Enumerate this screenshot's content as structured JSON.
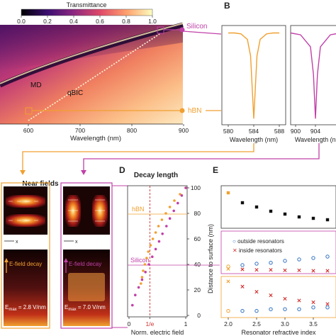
{
  "colors": {
    "orange": "#f0a030",
    "magenta": "#c040a8",
    "red": "#d03030",
    "blue": "#3070c0"
  },
  "panels": {
    "a": {
      "colorbar_title": "Transmittance",
      "colorbar_ticks": [
        "0.0",
        "0.2",
        "0.4",
        "0.6",
        "0.8",
        "1.0"
      ],
      "label_md": "MD",
      "label_qbic": "qBIC",
      "tag_silicon": "Silicon",
      "tag_hbn": "hBN",
      "xlabel": "Wavelength (nm)",
      "xticks": [
        "600",
        "700",
        "800",
        "900"
      ]
    },
    "b": {
      "letter": "B",
      "left": {
        "xticks": [
          "580",
          "584",
          "588"
        ],
        "xlabel": "Wavelength (nm)"
      },
      "right": {
        "xticks": [
          "900",
          "904"
        ],
        "xlabel": "Wavelength (nm)"
      }
    },
    "c": {
      "title": "Near fields",
      "axis_x": "x",
      "efield_left": "E-field decay",
      "efield_right": "E-field decay",
      "emax_left_prefix": "E",
      "emax_left_sub": "max",
      "emax_left_value": " = 2.8 V/nm",
      "emax_right_prefix": "E",
      "emax_right_sub": "max",
      "emax_right_value": " = 7.0 V/nm"
    },
    "d": {
      "letter": "D",
      "title": "Decay length",
      "label_hbn": "hBN",
      "label_silicon": "Silicon",
      "xlabel": "Norm. electric field",
      "xticks": [
        "0",
        "1/e",
        "1"
      ]
    },
    "e": {
      "letter": "E",
      "ylabel": "Distance to surface (nm)",
      "yticks": [
        "0",
        "20",
        "40",
        "60",
        "80",
        "100"
      ],
      "legend_outside": "outside resonators",
      "legend_inside": "inside resonators",
      "xlabel": "Resonator refractive index",
      "xticks": [
        "2.0",
        "2.5",
        "3.0",
        "3.5"
      ]
    }
  },
  "chart_data": [
    {
      "type": "line",
      "panel": "B-left",
      "x": [
        580,
        581,
        582,
        583,
        583.5,
        584,
        584.5,
        585,
        586,
        587,
        588
      ],
      "y": [
        0.95,
        0.95,
        0.94,
        0.88,
        0.7,
        0.02,
        0.7,
        0.88,
        0.94,
        0.95,
        0.95
      ],
      "xlabel": "Wavelength (nm)",
      "xlim": [
        579,
        589
      ]
    },
    {
      "type": "line",
      "panel": "B-right",
      "x": [
        899,
        901,
        903,
        903.6,
        904,
        904.4,
        905,
        907,
        909
      ],
      "y": [
        0.95,
        0.93,
        0.8,
        0.5,
        0.02,
        0.5,
        0.8,
        0.93,
        0.95
      ],
      "xlabel": "Wavelength (nm)",
      "xlim": [
        899,
        909
      ]
    },
    {
      "type": "scatter",
      "panel": "D",
      "xlabel": "Norm. electric field",
      "ylabel": "Distance to surface (nm)",
      "xlim": [
        0,
        1
      ],
      "ylim": [
        0,
        100
      ],
      "series": [
        {
          "name": "hBN",
          "x": [
            1.0,
            0.9,
            0.8,
            0.72,
            0.65,
            0.58,
            0.52,
            0.47,
            0.42,
            0.38,
            0.34,
            0.31,
            0.28,
            0.25,
            0.23,
            0.21
          ],
          "y": [
            100,
            95,
            90,
            85,
            80,
            75,
            70,
            65,
            60,
            55,
            50,
            45,
            40,
            35,
            30,
            25
          ]
        },
        {
          "name": "Silicon",
          "x": [
            1.0,
            0.93,
            0.86,
            0.79,
            0.72,
            0.66,
            0.59,
            0.53,
            0.47,
            0.41,
            0.35,
            0.29,
            0.23,
            0.17,
            0.11,
            0.06
          ],
          "y": [
            100,
            94,
            88,
            82,
            76,
            70,
            64,
            58,
            52,
            46,
            40,
            34,
            28,
            22,
            16,
            8
          ]
        }
      ]
    },
    {
      "type": "scatter",
      "panel": "E-top",
      "x": [
        2.0,
        2.25,
        2.5,
        2.75,
        3.0,
        3.25,
        3.5,
        3.75
      ],
      "y": [
        95,
        88,
        85,
        82,
        80,
        78,
        77,
        76
      ]
    },
    {
      "type": "scatter",
      "panel": "E-middle",
      "xlabel": "Resonator refractive index",
      "series": [
        {
          "name": "outside resonators",
          "x": [
            2.0,
            2.25,
            2.5,
            2.75,
            3.0,
            3.25,
            3.5,
            3.75
          ],
          "y": [
            40,
            43,
            46,
            48,
            52,
            55,
            58,
            61
          ]
        },
        {
          "name": "inside resonators",
          "x": [
            2.0,
            2.25,
            2.5,
            2.75,
            3.0,
            3.25,
            3.5,
            3.75
          ],
          "y": [
            35,
            34,
            33,
            33,
            32,
            32,
            31,
            31
          ]
        }
      ]
    },
    {
      "type": "scatter",
      "panel": "E-bottom",
      "series": [
        {
          "name": "outside resonators",
          "x": [
            2.0,
            2.25,
            2.5,
            2.75,
            3.0,
            3.25,
            3.5,
            3.75
          ],
          "y": [
            3,
            3,
            3,
            4,
            4,
            4,
            5,
            5
          ]
        },
        {
          "name": "inside resonators",
          "x": [
            2.0,
            2.25,
            2.5,
            2.75,
            3.0,
            3.25,
            3.5,
            3.75
          ],
          "y": [
            20,
            17,
            14,
            12,
            10,
            9,
            8,
            7
          ]
        }
      ]
    }
  ]
}
